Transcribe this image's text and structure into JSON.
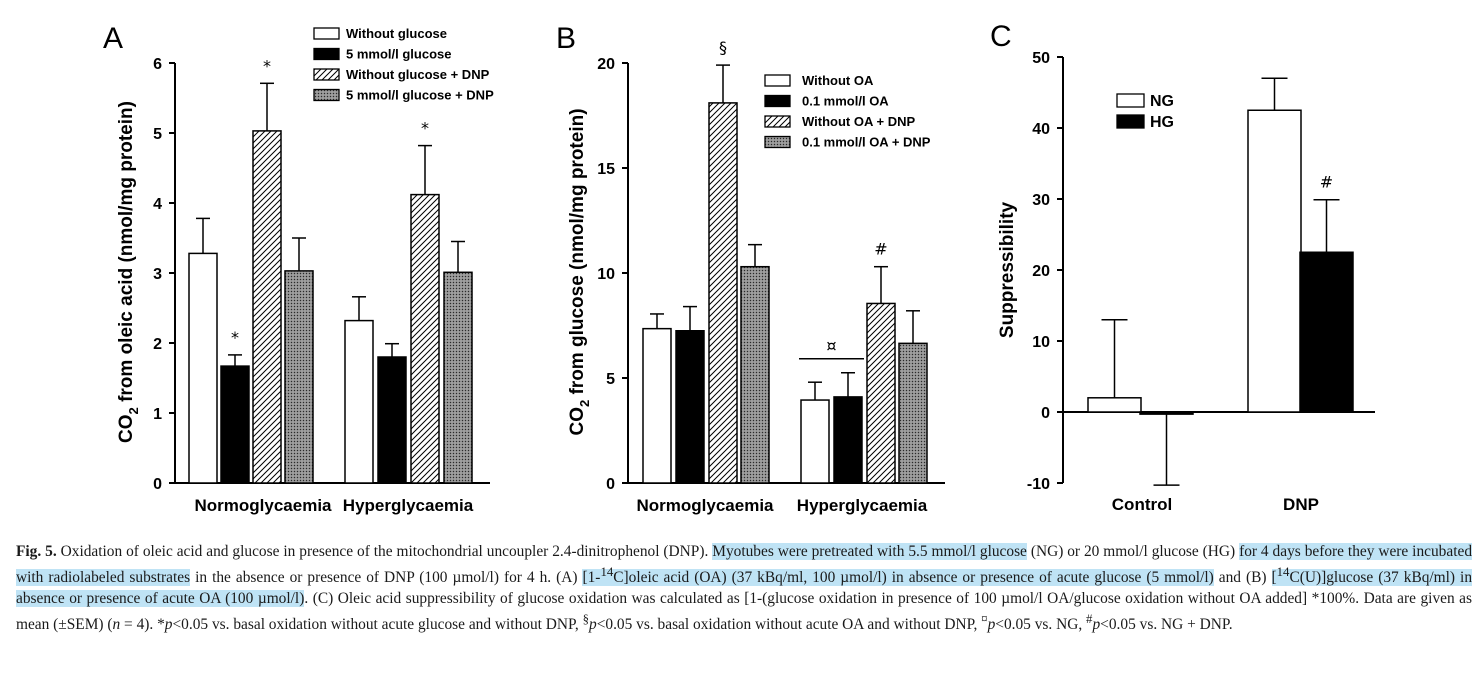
{
  "panels": [
    {
      "letter": "A",
      "ylabel_pre": "CO",
      "ylabel_sub": "2",
      "ylabel_post": " from oleic acid (nmol/mg protein)",
      "yticks": [
        0,
        1,
        2,
        3,
        4,
        5,
        6
      ],
      "ytick_labels": [
        "0",
        "1",
        "2",
        "3",
        "4",
        "5",
        "6"
      ],
      "groups": [
        "Normoglycaemia",
        "Hyperglycaemia"
      ],
      "legend": [
        "Without glucose",
        "5 mmol/l glucose",
        "Without glucose + DNP",
        "5 mmol/l glucose + DNP"
      ],
      "annotations": [
        "*",
        "*",
        "*"
      ]
    },
    {
      "letter": "B",
      "ylabel_pre": "CO",
      "ylabel_sub": "2",
      "ylabel_post": " from glucose (nmol/mg protein)",
      "yticks": [
        0,
        5,
        10,
        15,
        20
      ],
      "ytick_labels": [
        "0",
        "5",
        "10",
        "15",
        "20"
      ],
      "groups": [
        "Normoglycaemia",
        "Hyperglycaemia"
      ],
      "legend": [
        "Without OA",
        "0.1 mmol/l OA",
        "Without OA + DNP",
        "0.1 mmol/l OA + DNP"
      ],
      "annotations": [
        "§",
        "¤",
        "#"
      ]
    },
    {
      "letter": "C",
      "ylabel": "Suppressibility",
      "yticks": [
        -10,
        0,
        10,
        20,
        30,
        40,
        50
      ],
      "ytick_labels": [
        "-10",
        "0",
        "10",
        "20",
        "30",
        "40",
        "50"
      ],
      "groups": [
        "Control",
        "DNP"
      ],
      "legend": [
        "NG",
        "HG"
      ],
      "annotations": [
        "#"
      ]
    }
  ],
  "chart_data": [
    {
      "type": "bar",
      "panel": "A",
      "categories": [
        "Normoglycaemia",
        "Hyperglycaemia"
      ],
      "ylabel": "CO2 from oleic acid (nmol/mg protein)",
      "ylim": [
        0,
        6
      ],
      "series": [
        {
          "name": "Without glucose",
          "values": [
            3.28,
            2.32
          ],
          "errors": [
            0.5,
            0.34
          ],
          "fill": "white"
        },
        {
          "name": "5 mmol/l glucose",
          "values": [
            1.67,
            1.8
          ],
          "errors": [
            0.16,
            0.19
          ],
          "fill": "black"
        },
        {
          "name": "Without glucose + DNP",
          "values": [
            5.03,
            4.12
          ],
          "errors": [
            0.68,
            0.7
          ],
          "fill": "hatch"
        },
        {
          "name": "5 mmol/l glucose + DNP",
          "values": [
            3.03,
            3.01
          ],
          "errors": [
            0.47,
            0.44
          ],
          "fill": "crosshatch"
        }
      ],
      "annotations": [
        {
          "text": "*",
          "category": 0,
          "series": 1
        },
        {
          "text": "*",
          "category": 0,
          "series": 2
        },
        {
          "text": "*",
          "category": 1,
          "series": 2
        }
      ]
    },
    {
      "type": "bar",
      "panel": "B",
      "categories": [
        "Normoglycaemia",
        "Hyperglycaemia"
      ],
      "ylabel": "CO2 from glucose (nmol/mg protein)",
      "ylim": [
        0,
        20
      ],
      "series": [
        {
          "name": "Without OA",
          "values": [
            7.35,
            3.95
          ],
          "errors": [
            0.7,
            0.85
          ],
          "fill": "white"
        },
        {
          "name": "0.1 mmol/l OA",
          "values": [
            7.25,
            4.1
          ],
          "errors": [
            1.15,
            1.15
          ],
          "fill": "black"
        },
        {
          "name": "Without OA + DNP",
          "values": [
            18.1,
            8.55
          ],
          "errors": [
            1.8,
            1.75
          ],
          "fill": "hatch"
        },
        {
          "name": "0.1 mmol/l OA + DNP",
          "values": [
            10.3,
            6.65
          ],
          "errors": [
            1.05,
            1.55
          ],
          "fill": "crosshatch"
        }
      ],
      "annotations": [
        {
          "text": "§",
          "category": 0,
          "series": 2
        },
        {
          "text": "¤",
          "category": 1,
          "series": [
            0,
            1
          ]
        },
        {
          "text": "#",
          "category": 1,
          "series": 2
        }
      ]
    },
    {
      "type": "bar",
      "panel": "C",
      "categories": [
        "Control",
        "DNP"
      ],
      "ylabel": "Suppressibility",
      "ylim": [
        -10,
        50
      ],
      "series": [
        {
          "name": "NG",
          "values": [
            2,
            42.5
          ],
          "errors": [
            11,
            4.5
          ],
          "fill": "white"
        },
        {
          "name": "HG",
          "values": [
            -0.3,
            22.5
          ],
          "errors": [
            10,
            7.4
          ],
          "fill": "black"
        }
      ],
      "annotations": [
        {
          "text": "#",
          "category": 1,
          "series": 1
        }
      ]
    }
  ],
  "caption": {
    "fig_label": "Fig. 5.",
    "s1": " Oxidation of oleic acid and glucose in presence of the mitochondrial uncoupler 2.4-dinitrophenol (DNP). ",
    "h1": "Myotubes were pretreated with 5.5 mmol/l glucose",
    "s2": " (NG) or 20 mmol/l glucose (HG) ",
    "h2": "for 4 days before they were incubated with radiolabeled substrates",
    "s3": " in the absence or presence of DNP (100 µmol/l) for 4 h. (A) ",
    "h3a": "[1-",
    "h3sup": "14",
    "h3b": "C]oleic acid (OA) (37 kBq/ml, 100 µmol/l) in absence or presence of acute glucose (5 mmol/l)",
    "s4": " and (B) ",
    "h4a": "[",
    "h4sup": "14",
    "h4b": "C(U)]glucose (37 kBq/ml) in absence or presence of acute OA (100 µmol/l)",
    "s5": ". (C) Oleic acid suppressibility of glucose oxidation was calculated as [1-(glucose oxidation in presence of 100 µmol/l OA/glucose oxidation without OA added] *100%. Data are given as mean (±SEM) (",
    "n_var": "n",
    "s6": " = 4). *",
    "p1": "p",
    "s7": "<0.05 vs. basal oxidation without acute glucose and without DNP, ",
    "sup1": "§",
    "p2": "p",
    "s8": "<0.05 vs. basal oxidation without acute OA and without DNP, ",
    "sup2": "¤",
    "p3": "p",
    "s9": "<0.05 vs. NG, ",
    "sup3": "#",
    "p4": "p",
    "s10": "<0.05 vs. NG + DNP."
  }
}
